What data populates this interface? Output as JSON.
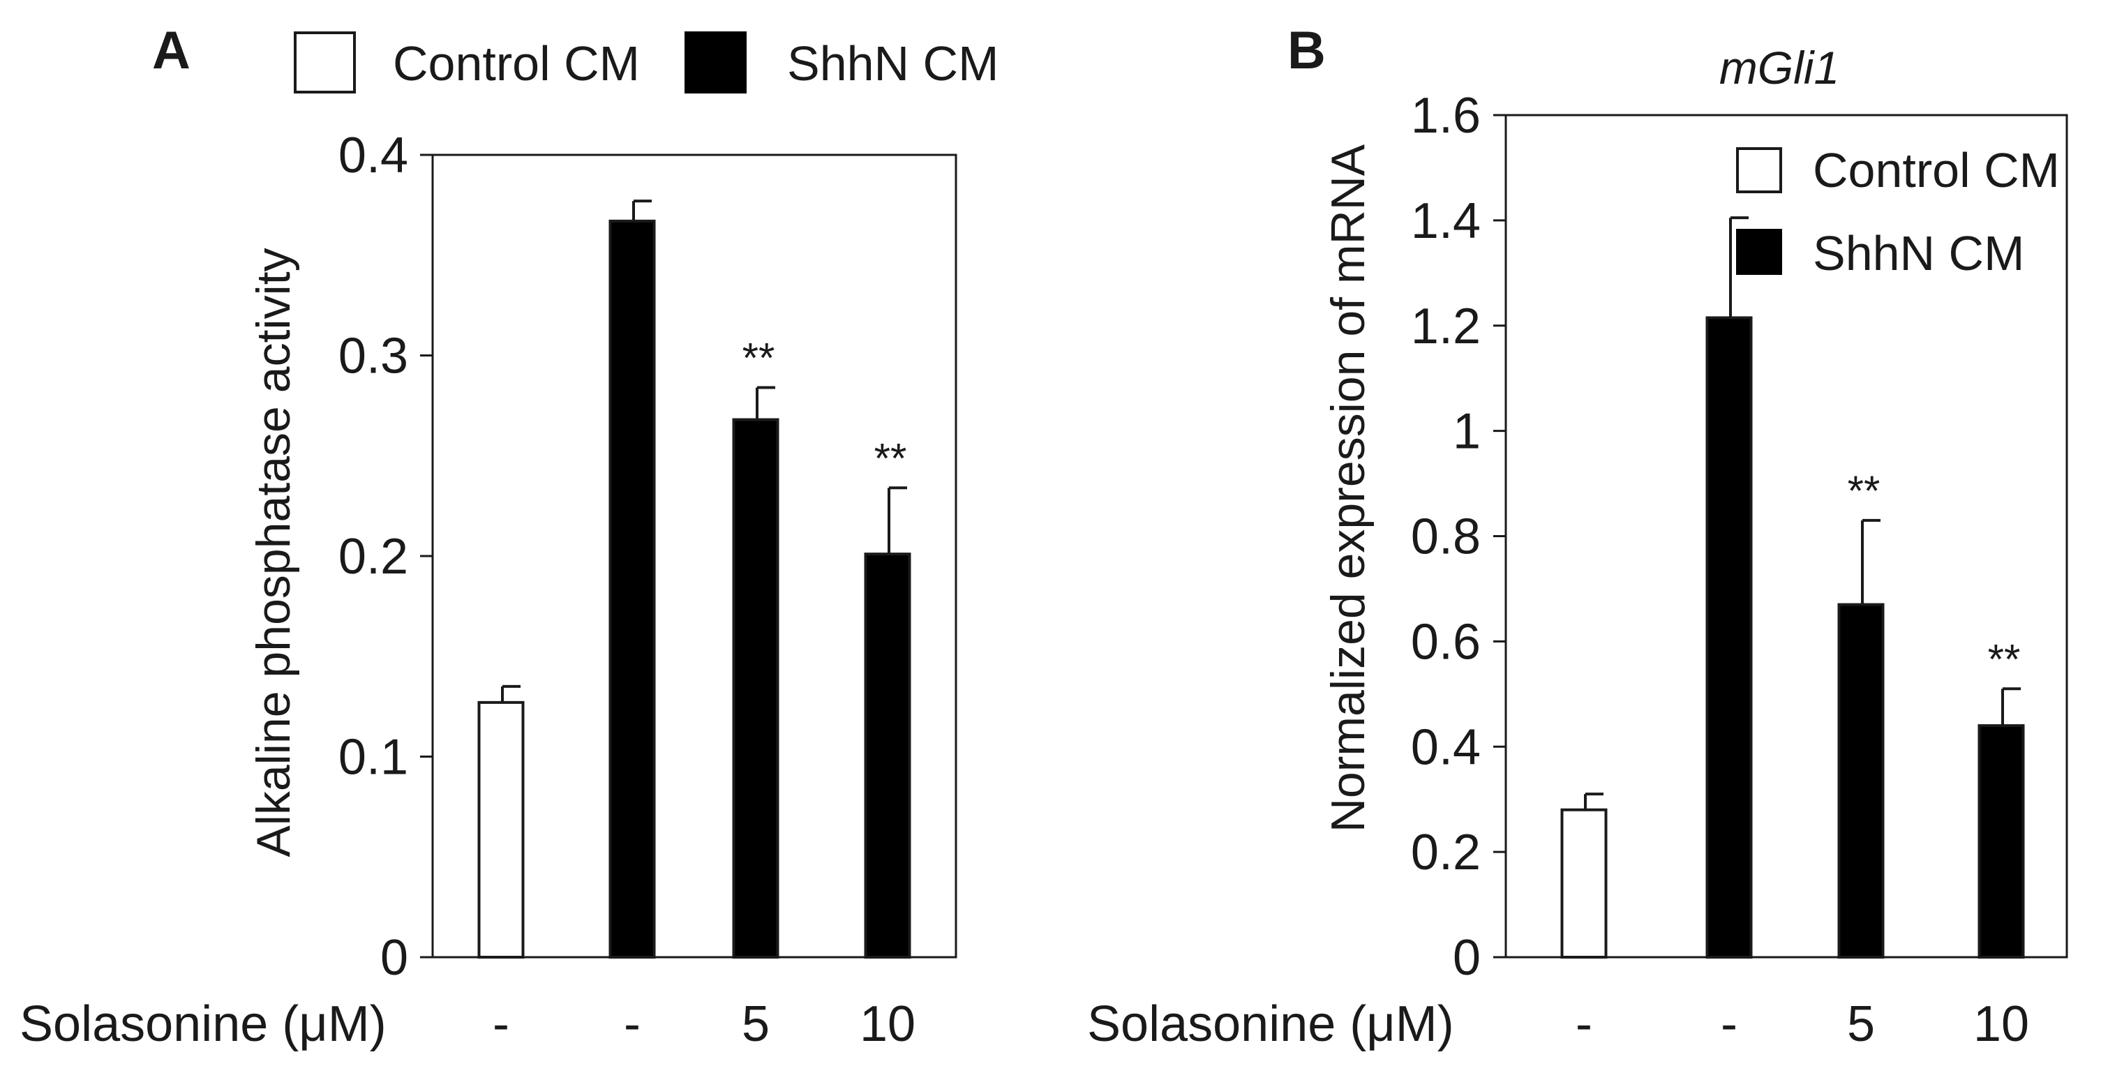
{
  "chart_data": [
    {
      "panel": "A",
      "type": "bar",
      "title": "",
      "ylabel": "Alkaline phosphatase activity",
      "xlabel": "Solasonine (μM)",
      "ylim": [
        0,
        0.4
      ],
      "yticks": [
        0,
        0.1,
        0.2,
        0.3,
        0.4
      ],
      "ytick_labels": [
        "0",
        "0.1",
        "0.2",
        "0.3",
        "0.4"
      ],
      "legend": {
        "placement": "top-outside",
        "entries": [
          {
            "name": "Control CM",
            "fill": "#ffffff"
          },
          {
            "name": "ShhN CM",
            "fill": "#000000"
          }
        ]
      },
      "bars": [
        {
          "label": "-",
          "series": "Control CM",
          "value": 0.127,
          "error": 0.008,
          "sig": ""
        },
        {
          "label": "-",
          "series": "ShhN CM",
          "value": 0.367,
          "error": 0.01,
          "sig": ""
        },
        {
          "label": "5",
          "series": "ShhN CM",
          "value": 0.268,
          "error": 0.016,
          "sig": "**"
        },
        {
          "label": "10",
          "series": "ShhN CM",
          "value": 0.201,
          "error": 0.033,
          "sig": "**"
        }
      ]
    },
    {
      "panel": "B",
      "type": "bar",
      "title": "mGli1",
      "ylabel": "Normalized expression of mRNA",
      "xlabel": "Solasonine (μM)",
      "ylim": [
        0,
        1.6
      ],
      "yticks": [
        0,
        0.2,
        0.4,
        0.6,
        0.8,
        1.0,
        1.2,
        1.4,
        1.6
      ],
      "ytick_labels": [
        "0",
        "0.2",
        "0.4",
        "0.6",
        "0.8",
        "1",
        "1.2",
        "1.4",
        "1.6"
      ],
      "legend": {
        "placement": "top-right",
        "entries": [
          {
            "name": "Control CM",
            "fill": "#ffffff"
          },
          {
            "name": "ShhN CM",
            "fill": "#000000"
          }
        ]
      },
      "bars": [
        {
          "label": "-",
          "series": "Control CM",
          "value": 0.28,
          "error": 0.03,
          "sig": ""
        },
        {
          "label": "-",
          "series": "ShhN CM",
          "value": 1.215,
          "error": 0.19,
          "sig": ""
        },
        {
          "label": "5",
          "series": "ShhN CM",
          "value": 0.67,
          "error": 0.16,
          "sig": "**"
        },
        {
          "label": "10",
          "series": "ShhN CM",
          "value": 0.44,
          "error": 0.07,
          "sig": "**"
        }
      ]
    }
  ]
}
